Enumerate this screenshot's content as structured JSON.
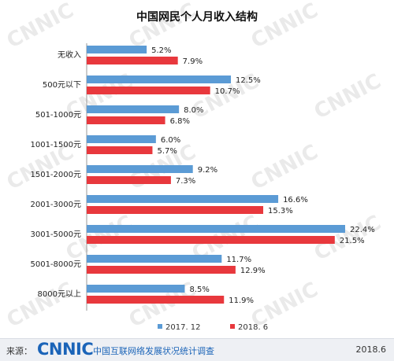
{
  "chart_data": {
    "type": "bar",
    "orientation": "horizontal",
    "title": "中国网民个人月收入结构",
    "categories": [
      "无收入",
      "500元以下",
      "501-1000元",
      "1001-1500元",
      "1501-2000元",
      "2001-3000元",
      "3001-5000元",
      "5001-8000元",
      "8000元以上"
    ],
    "series": [
      {
        "name": "2017. 12",
        "color": "#5b9bd5",
        "values": [
          5.2,
          12.5,
          8.0,
          6.0,
          9.2,
          16.6,
          22.4,
          11.7,
          8.5
        ],
        "labels": [
          "5.2%",
          "12.5%",
          "8.0%",
          "6.0%",
          "9.2%",
          "16.6%",
          "22.4%",
          "11.7%",
          "8.5%"
        ]
      },
      {
        "name": "2018. 6",
        "color": "#e8383d",
        "values": [
          7.9,
          10.7,
          6.8,
          5.7,
          7.3,
          15.3,
          21.5,
          12.9,
          11.9
        ],
        "labels": [
          "7.9%",
          "10.7%",
          "6.8%",
          "5.7%",
          "7.3%",
          "15.3%",
          "21.5%",
          "12.9%",
          "11.9%"
        ]
      }
    ],
    "unit": "%",
    "xlim": [
      0,
      22.4
    ],
    "grid": false,
    "legend_position": "bottom"
  },
  "footer": {
    "source_label": "来源：",
    "logo_text": "CNNIC",
    "org_name": "中国互联网络发展状况统计调查",
    "date": "2018.6"
  },
  "watermark": {
    "text": "CNNIC",
    "color": "#e6e6e6"
  }
}
